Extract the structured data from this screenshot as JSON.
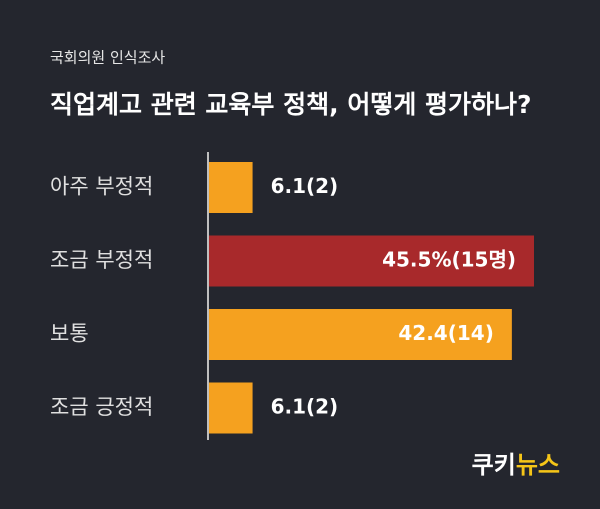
{
  "chart_data": {
    "type": "hbar",
    "subtitle": "국회의원 인식조사",
    "title": "직업계고 관련 교육부 정책, 어떻게 평가하나?",
    "categories": [
      "아주 부정적",
      "조금 부정적",
      "보통",
      "조금 긍정적"
    ],
    "values": [
      6.1,
      45.5,
      42.4,
      6.1
    ],
    "value_labels": [
      "6.1(2)",
      "45.5%(15명)",
      "42.4(14)",
      "6.1(2)"
    ],
    "colors": [
      "#f5a11f",
      "#a8292b",
      "#f5a11f",
      "#f5a11f"
    ]
  },
  "logo": {
    "part1": "쿠키",
    "part2": "뉴스"
  }
}
